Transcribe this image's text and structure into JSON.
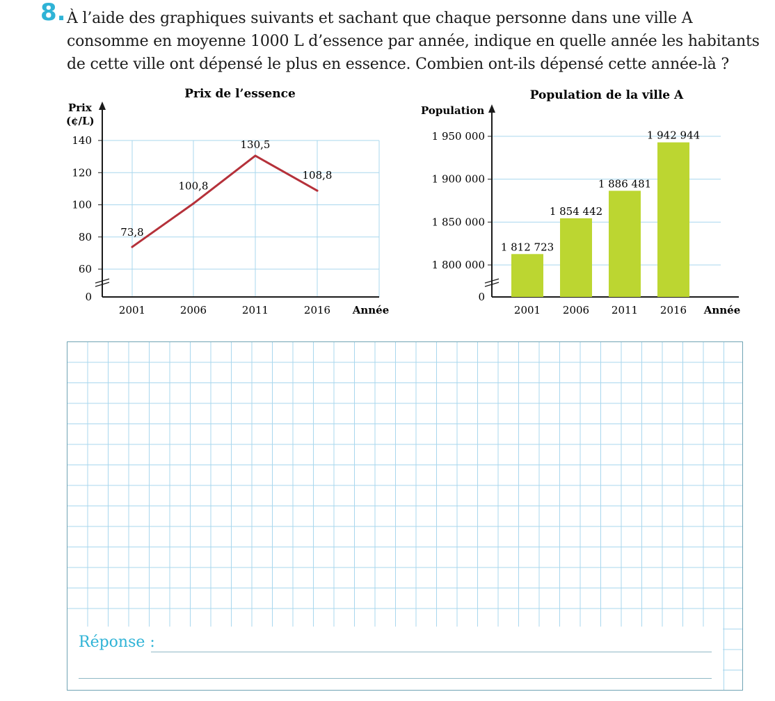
{
  "question": {
    "number": "8.",
    "lines": [
      "À l’aide des graphiques suivants et sachant que chaque personne dans une ville A",
      "consomme en moyenne 1000 L d’essence par année, indique en quelle année les habitants",
      "de cette ville ont dépensé le plus en essence. Combien ont-ils dépensé cette année-là ?"
    ]
  },
  "chart_data": [
    {
      "type": "line",
      "title": "Prix de l’essence",
      "ylabel_line1": "Prix",
      "ylabel_line2": "(¢/L)",
      "xlabel": "Année",
      "categories": [
        "2001",
        "2006",
        "2011",
        "2016"
      ],
      "values": [
        73.8,
        100.8,
        130.5,
        108.8
      ],
      "value_labels": [
        "73,8",
        "100,8",
        "130,5",
        "108,8"
      ],
      "y_ticks": [
        "140",
        "120",
        "100",
        "80",
        "60"
      ],
      "y_tick_values": [
        140,
        120,
        100,
        80,
        60
      ],
      "y_zero": "0",
      "ylim": [
        60,
        140
      ],
      "axis_break": true,
      "grid": true,
      "line_color": "#b5313a",
      "grid_color": "#a8d7ee"
    },
    {
      "type": "bar",
      "title": "Population de la ville A",
      "ylabel": "Population",
      "xlabel": "Année",
      "categories": [
        "2001",
        "2006",
        "2011",
        "2016"
      ],
      "values": [
        1812723,
        1854442,
        1886481,
        1942944
      ],
      "value_labels": [
        "1 812 723",
        "1 854 442",
        "1 886 481",
        "1 942 944"
      ],
      "y_ticks": [
        "1 950 000",
        "1 900 000",
        "1 850 000",
        "1 800 000"
      ],
      "y_tick_values": [
        1950000,
        1900000,
        1850000,
        1800000
      ],
      "y_zero": "0",
      "ylim": [
        1800000,
        1950000
      ],
      "axis_break": true,
      "grid": true,
      "bar_color": "#bcd631",
      "grid_color": "#a8d7ee"
    }
  ],
  "answer": {
    "label": "Réponse :"
  },
  "colors": {
    "accent": "#2fb3d6",
    "grid": "#a8d7ee"
  }
}
